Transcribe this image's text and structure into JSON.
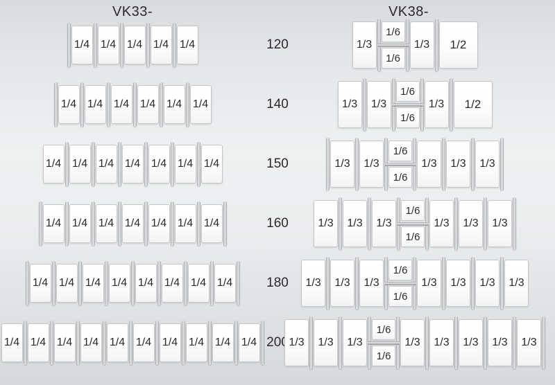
{
  "headers": {
    "left": "VK33-",
    "right": "VK38-"
  },
  "colors": {
    "background": "#e8eaec",
    "cell_fill": "#ffffff",
    "cell_border": "#c6c7c9",
    "divider_gray": "#c9cacc",
    "text": "#2a2a2c"
  },
  "rows": [
    {
      "size": "120",
      "vk33": {
        "edge_left": true,
        "edge_right": false,
        "cells": [
          "1/4",
          "1/4",
          "1/4",
          "1/4",
          "1/4"
        ]
      },
      "vk38": {
        "edge_left": false,
        "edge_right": false,
        "cells": [
          "1/3",
          {
            "stack": [
              "1/6",
              "1/6"
            ]
          },
          "1/3",
          "1/2"
        ]
      }
    },
    {
      "size": "140",
      "vk33": {
        "edge_left": true,
        "edge_right": false,
        "cells": [
          "1/4",
          "1/4",
          "1/4",
          "1/4",
          "1/4",
          "1/4"
        ]
      },
      "vk38": {
        "edge_left": false,
        "edge_right": false,
        "cells": [
          "1/3",
          "1/3",
          {
            "stack": [
              "1/6",
              "1/6"
            ]
          },
          "1/3",
          "1/2"
        ]
      }
    },
    {
      "size": "150",
      "vk33": {
        "edge_left": false,
        "edge_right": false,
        "cells": [
          "1/4",
          "1/4",
          "1/4",
          "1/4",
          "1/4",
          "1/4",
          "1/4"
        ]
      },
      "vk38": {
        "edge_left": true,
        "edge_right": true,
        "cells": [
          "1/3",
          "1/3",
          {
            "stack": [
              "1/6",
              "1/6"
            ]
          },
          "1/3",
          "1/3",
          "1/3"
        ]
      }
    },
    {
      "size": "160",
      "vk33": {
        "edge_left": true,
        "edge_right": true,
        "cells": [
          "1/4",
          "1/4",
          "1/4",
          "1/4",
          "1/4",
          "1/4",
          "1/4"
        ]
      },
      "vk38": {
        "edge_left": false,
        "edge_right": true,
        "cells": [
          "1/3",
          "1/3",
          "1/3",
          {
            "stack": [
              "1/6",
              "1/6"
            ]
          },
          "1/3",
          "1/3",
          "1/3"
        ]
      }
    },
    {
      "size": "180",
      "vk33": {
        "edge_left": true,
        "edge_right": true,
        "cells": [
          "1/4",
          "1/4",
          "1/4",
          "1/4",
          "1/4",
          "1/4",
          "1/4",
          "1/4"
        ]
      },
      "vk38": {
        "edge_left": false,
        "edge_right": false,
        "cells": [
          "1/3",
          "1/3",
          "1/3",
          {
            "stack": [
              "1/6",
              "1/6"
            ]
          },
          "1/3",
          "1/3",
          "1/3",
          "1/3"
        ]
      }
    },
    {
      "size": "200",
      "vk33": {
        "edge_left": false,
        "edge_right": true,
        "cells": [
          "1/4",
          "1/4",
          "1/4",
          "1/4",
          "1/4",
          "1/4",
          "1/4",
          "1/4",
          "1/4",
          "1/4"
        ]
      },
      "vk38": {
        "edge_left": false,
        "edge_right": true,
        "cells": [
          "1/3",
          "1/3",
          "1/3",
          {
            "stack": [
              "1/6",
              "1/6"
            ]
          },
          "1/3",
          "1/3",
          "1/3",
          "1/3",
          "1/3"
        ]
      }
    }
  ]
}
